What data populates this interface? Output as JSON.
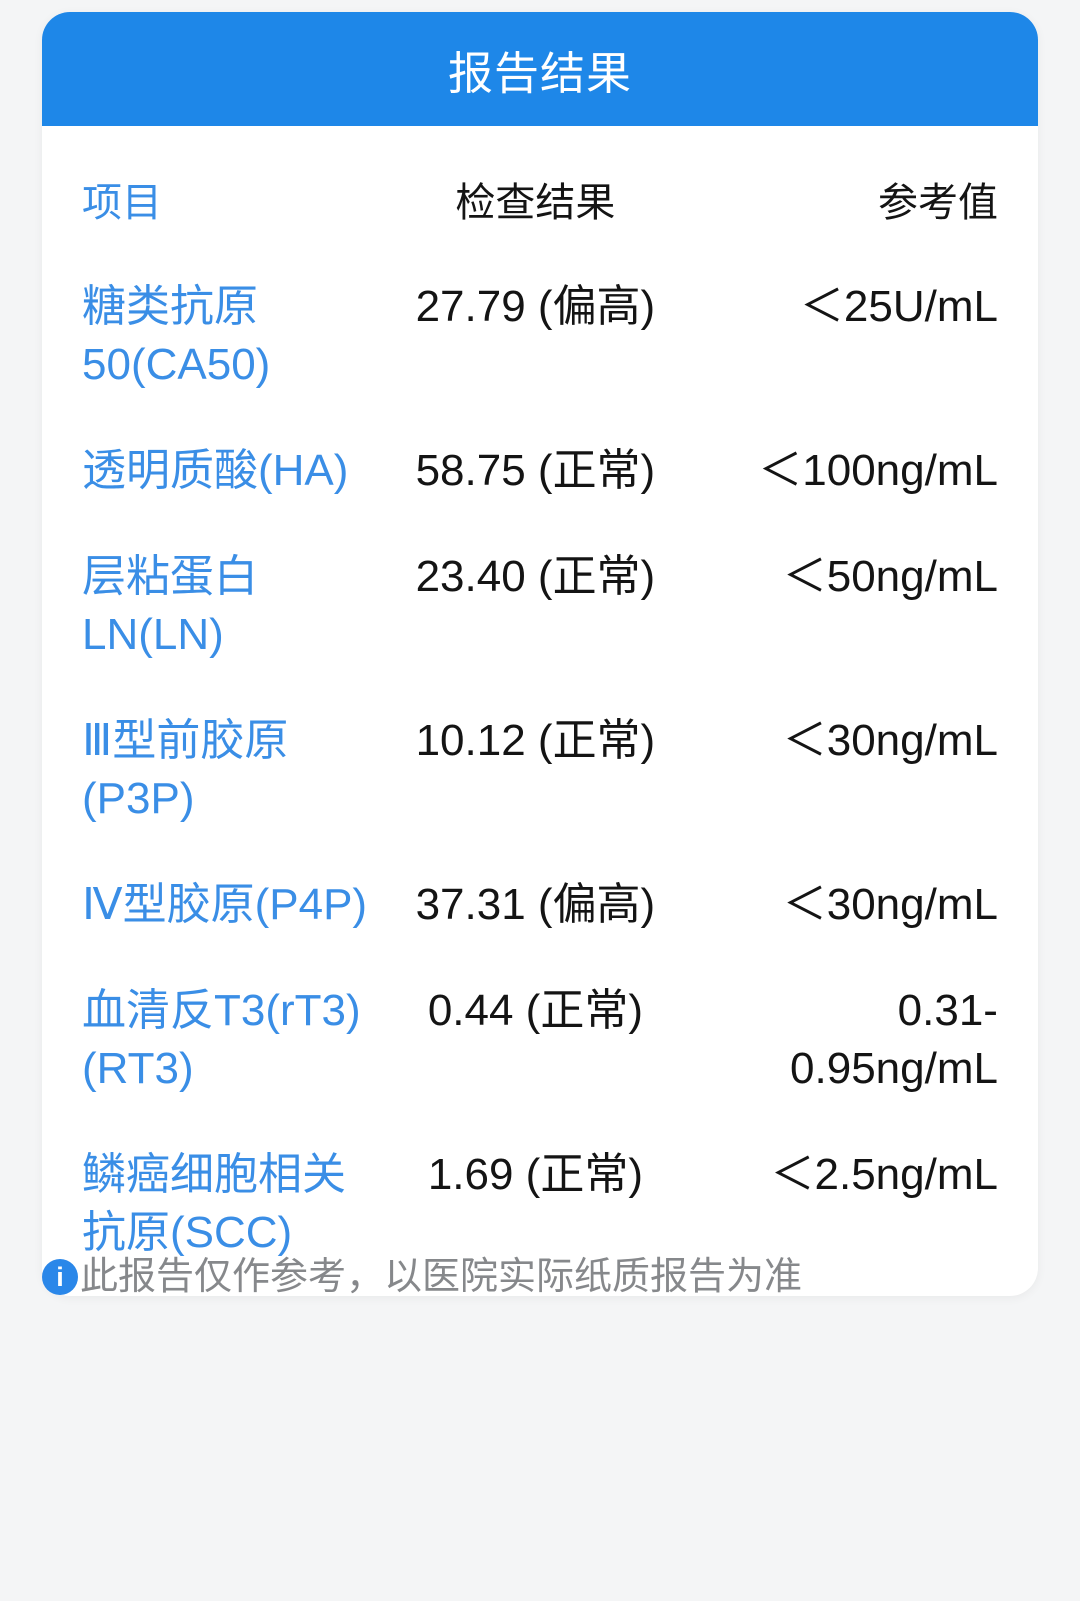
{
  "header": {
    "title": "报告结果"
  },
  "table": {
    "columns": [
      "项目",
      "检查结果",
      "参考值"
    ],
    "rows": [
      {
        "item": [
          "糖类抗原",
          "50(CA50)"
        ],
        "result": "27.79 (偏高)",
        "ref": [
          "＜25U/mL"
        ]
      },
      {
        "item": [
          "透明质酸(HA)"
        ],
        "result": "58.75 (正常)",
        "ref": [
          "＜100ng/mL"
        ]
      },
      {
        "item": [
          "层粘蛋白",
          "LN(LN)"
        ],
        "result": "23.40 (正常)",
        "ref": [
          "＜50ng/mL"
        ]
      },
      {
        "item": [
          "Ⅲ型前胶原",
          "(P3P)"
        ],
        "result": "10.12 (正常)",
        "ref": [
          "＜30ng/mL"
        ]
      },
      {
        "item": [
          "Ⅳ型胶原(P4P)"
        ],
        "result": "37.31 (偏高)",
        "ref": [
          "＜30ng/mL"
        ]
      },
      {
        "item": [
          "血清反T3(rT3)",
          "(RT3)"
        ],
        "result": "0.44 (正常)",
        "ref": [
          "0.31-",
          "0.95ng/mL"
        ]
      },
      {
        "item": [
          "鳞癌细胞相关",
          "抗原(SCC)"
        ],
        "result": "1.69 (正常)",
        "ref": [
          "＜2.5ng/mL"
        ]
      }
    ]
  },
  "footer": {
    "info_glyph": "i",
    "note": "此报告仅作参考，以医院实际纸质报告为准"
  },
  "colors": {
    "page_bg": "#f4f5f6",
    "card_bg": "#ffffff",
    "header_bg": "#1e87e8",
    "item_link": "#3a8ee6",
    "result_text": "#141414",
    "column_header": "#9ca0a4",
    "note_text": "#86888b",
    "info_icon_bg": "#2a87e9"
  }
}
